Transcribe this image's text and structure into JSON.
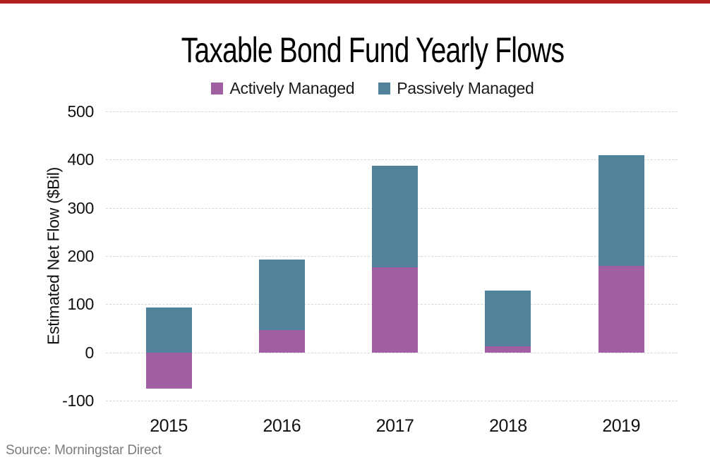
{
  "page": {
    "accent_rule_color": "#b1201c",
    "background": "#ffffff",
    "source_note": "Source: Morningstar Direct"
  },
  "chart_data": {
    "type": "bar",
    "stacked": true,
    "title": "Taxable Bond Fund Yearly Flows",
    "xlabel": "",
    "ylabel": "Estimated Net Flow ($Bil)",
    "categories": [
      "2015",
      "2016",
      "2017",
      "2018",
      "2019"
    ],
    "series": [
      {
        "name": "Actively Managed",
        "color": "#9f5fa0",
        "values": [
          -75,
          47,
          176,
          13,
          180
        ]
      },
      {
        "name": "Passively Managed",
        "color": "#52819a",
        "values": [
          93,
          146,
          212,
          115,
          230
        ]
      }
    ],
    "ylim": [
      -100,
      500
    ],
    "yticks": [
      500,
      400,
      300,
      200,
      100,
      0,
      -100
    ],
    "grid": "horizontal-dashed",
    "gridline_color": "#d7d7d7",
    "legend_position": "top"
  }
}
